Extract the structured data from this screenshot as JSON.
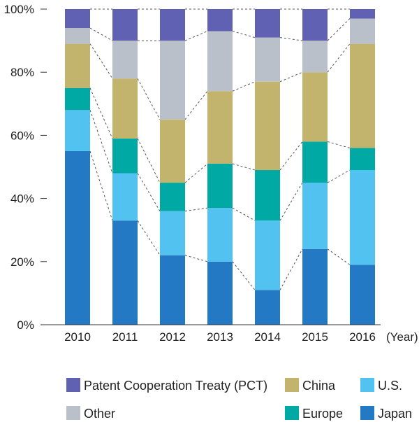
{
  "chart_data": {
    "type": "bar",
    "stacked": true,
    "normalized_percent": true,
    "categories": [
      "2010",
      "2011",
      "2012",
      "2013",
      "2014",
      "2015",
      "2016"
    ],
    "xlabel": "(Year)",
    "ylabel": "",
    "title": "",
    "ylim": [
      0,
      100
    ],
    "yticks": [
      "0%",
      "20%",
      "40%",
      "60%",
      "80%",
      "100%"
    ],
    "grid": false,
    "connector_lines": "dashed",
    "legend_position": "bottom",
    "series": [
      {
        "name": "Japan",
        "color": "#2379C4",
        "values": [
          55,
          33,
          22,
          20,
          11,
          24,
          19
        ]
      },
      {
        "name": "U.S.",
        "color": "#52C2F0",
        "values": [
          13,
          15,
          14,
          17,
          22,
          21,
          30
        ]
      },
      {
        "name": "Europe",
        "color": "#00A9A4",
        "values": [
          7,
          11,
          9,
          14,
          16,
          13,
          7
        ]
      },
      {
        "name": "China",
        "color": "#C2B46C",
        "values": [
          14,
          19,
          20,
          23,
          28,
          22,
          33
        ]
      },
      {
        "name": "Other",
        "color": "#B9C0C9",
        "values": [
          5,
          12,
          25,
          19,
          14,
          10,
          8
        ]
      },
      {
        "name": "Patent Cooperation Treaty (PCT)",
        "color": "#6061B2",
        "values": [
          6,
          10,
          10,
          7,
          9,
          10,
          3
        ]
      }
    ]
  }
}
